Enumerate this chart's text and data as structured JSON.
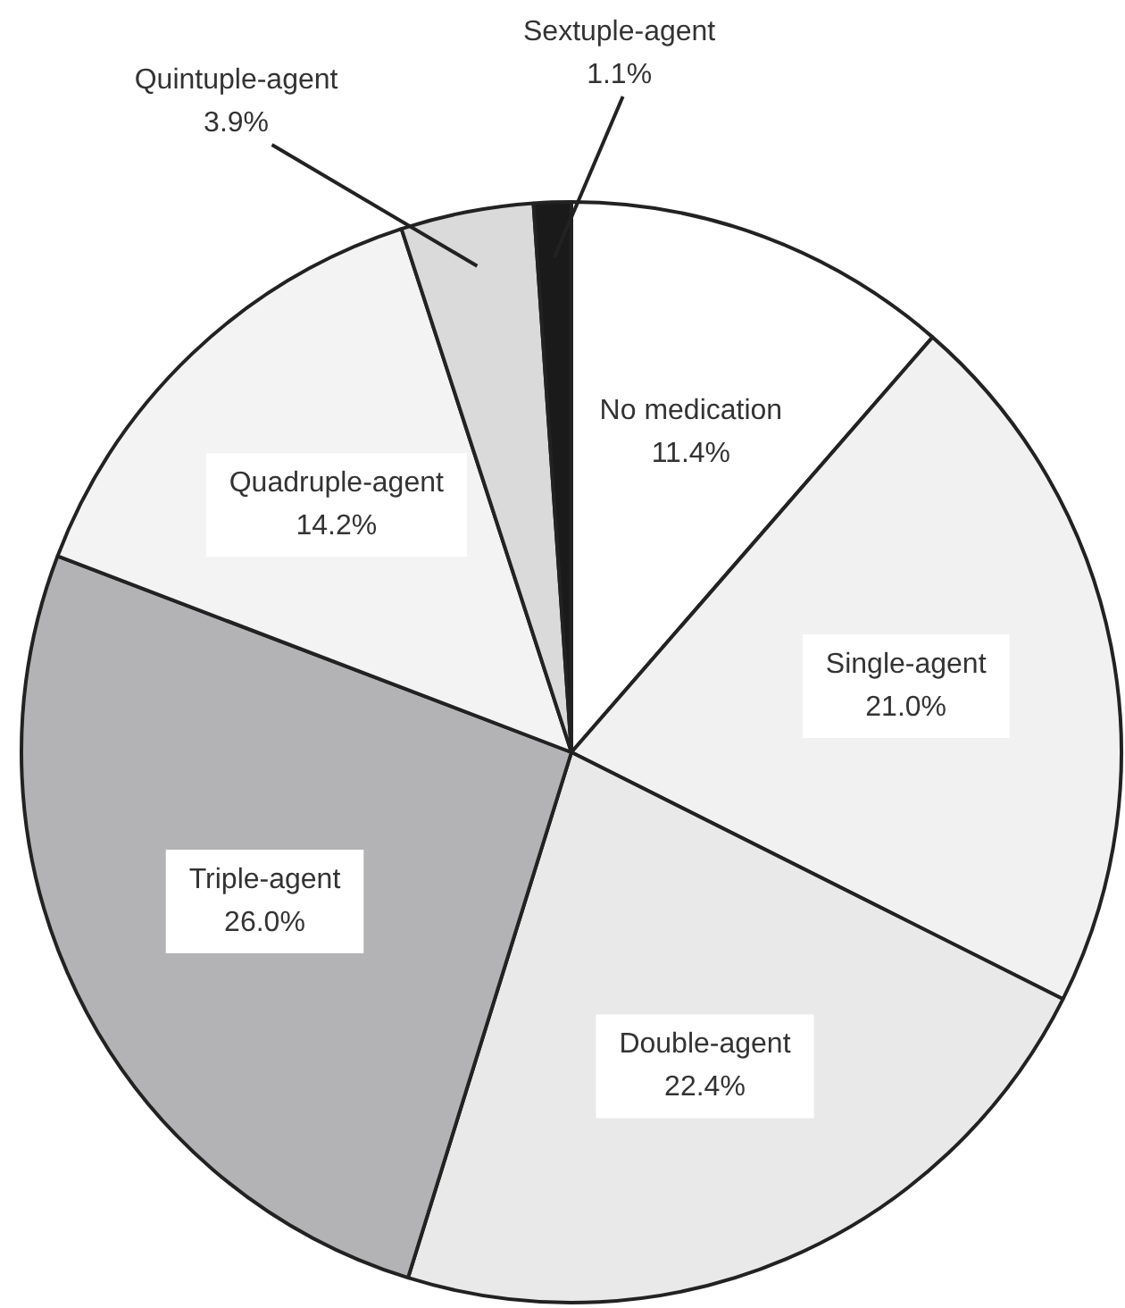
{
  "chart_data": {
    "type": "pie",
    "categories": [
      "No medication",
      "Single-agent",
      "Double-agent",
      "Triple-agent",
      "Quadruple-agent",
      "Quintuple-agent",
      "Sextuple-agent"
    ],
    "values": [
      11.4,
      21.0,
      22.4,
      26.0,
      14.2,
      3.9,
      1.1
    ],
    "value_labels": [
      "11.4%",
      "21.0%",
      "22.4%",
      "26.0%",
      "14.2%",
      "3.9%",
      "1.1%"
    ],
    "colors": [
      "#ffffff",
      "#f0f1f0",
      "#e9e9e9",
      "#b3b3b6",
      "#f3f3f3",
      "#dadada",
      "#1a1a1a"
    ],
    "legend": false
  }
}
